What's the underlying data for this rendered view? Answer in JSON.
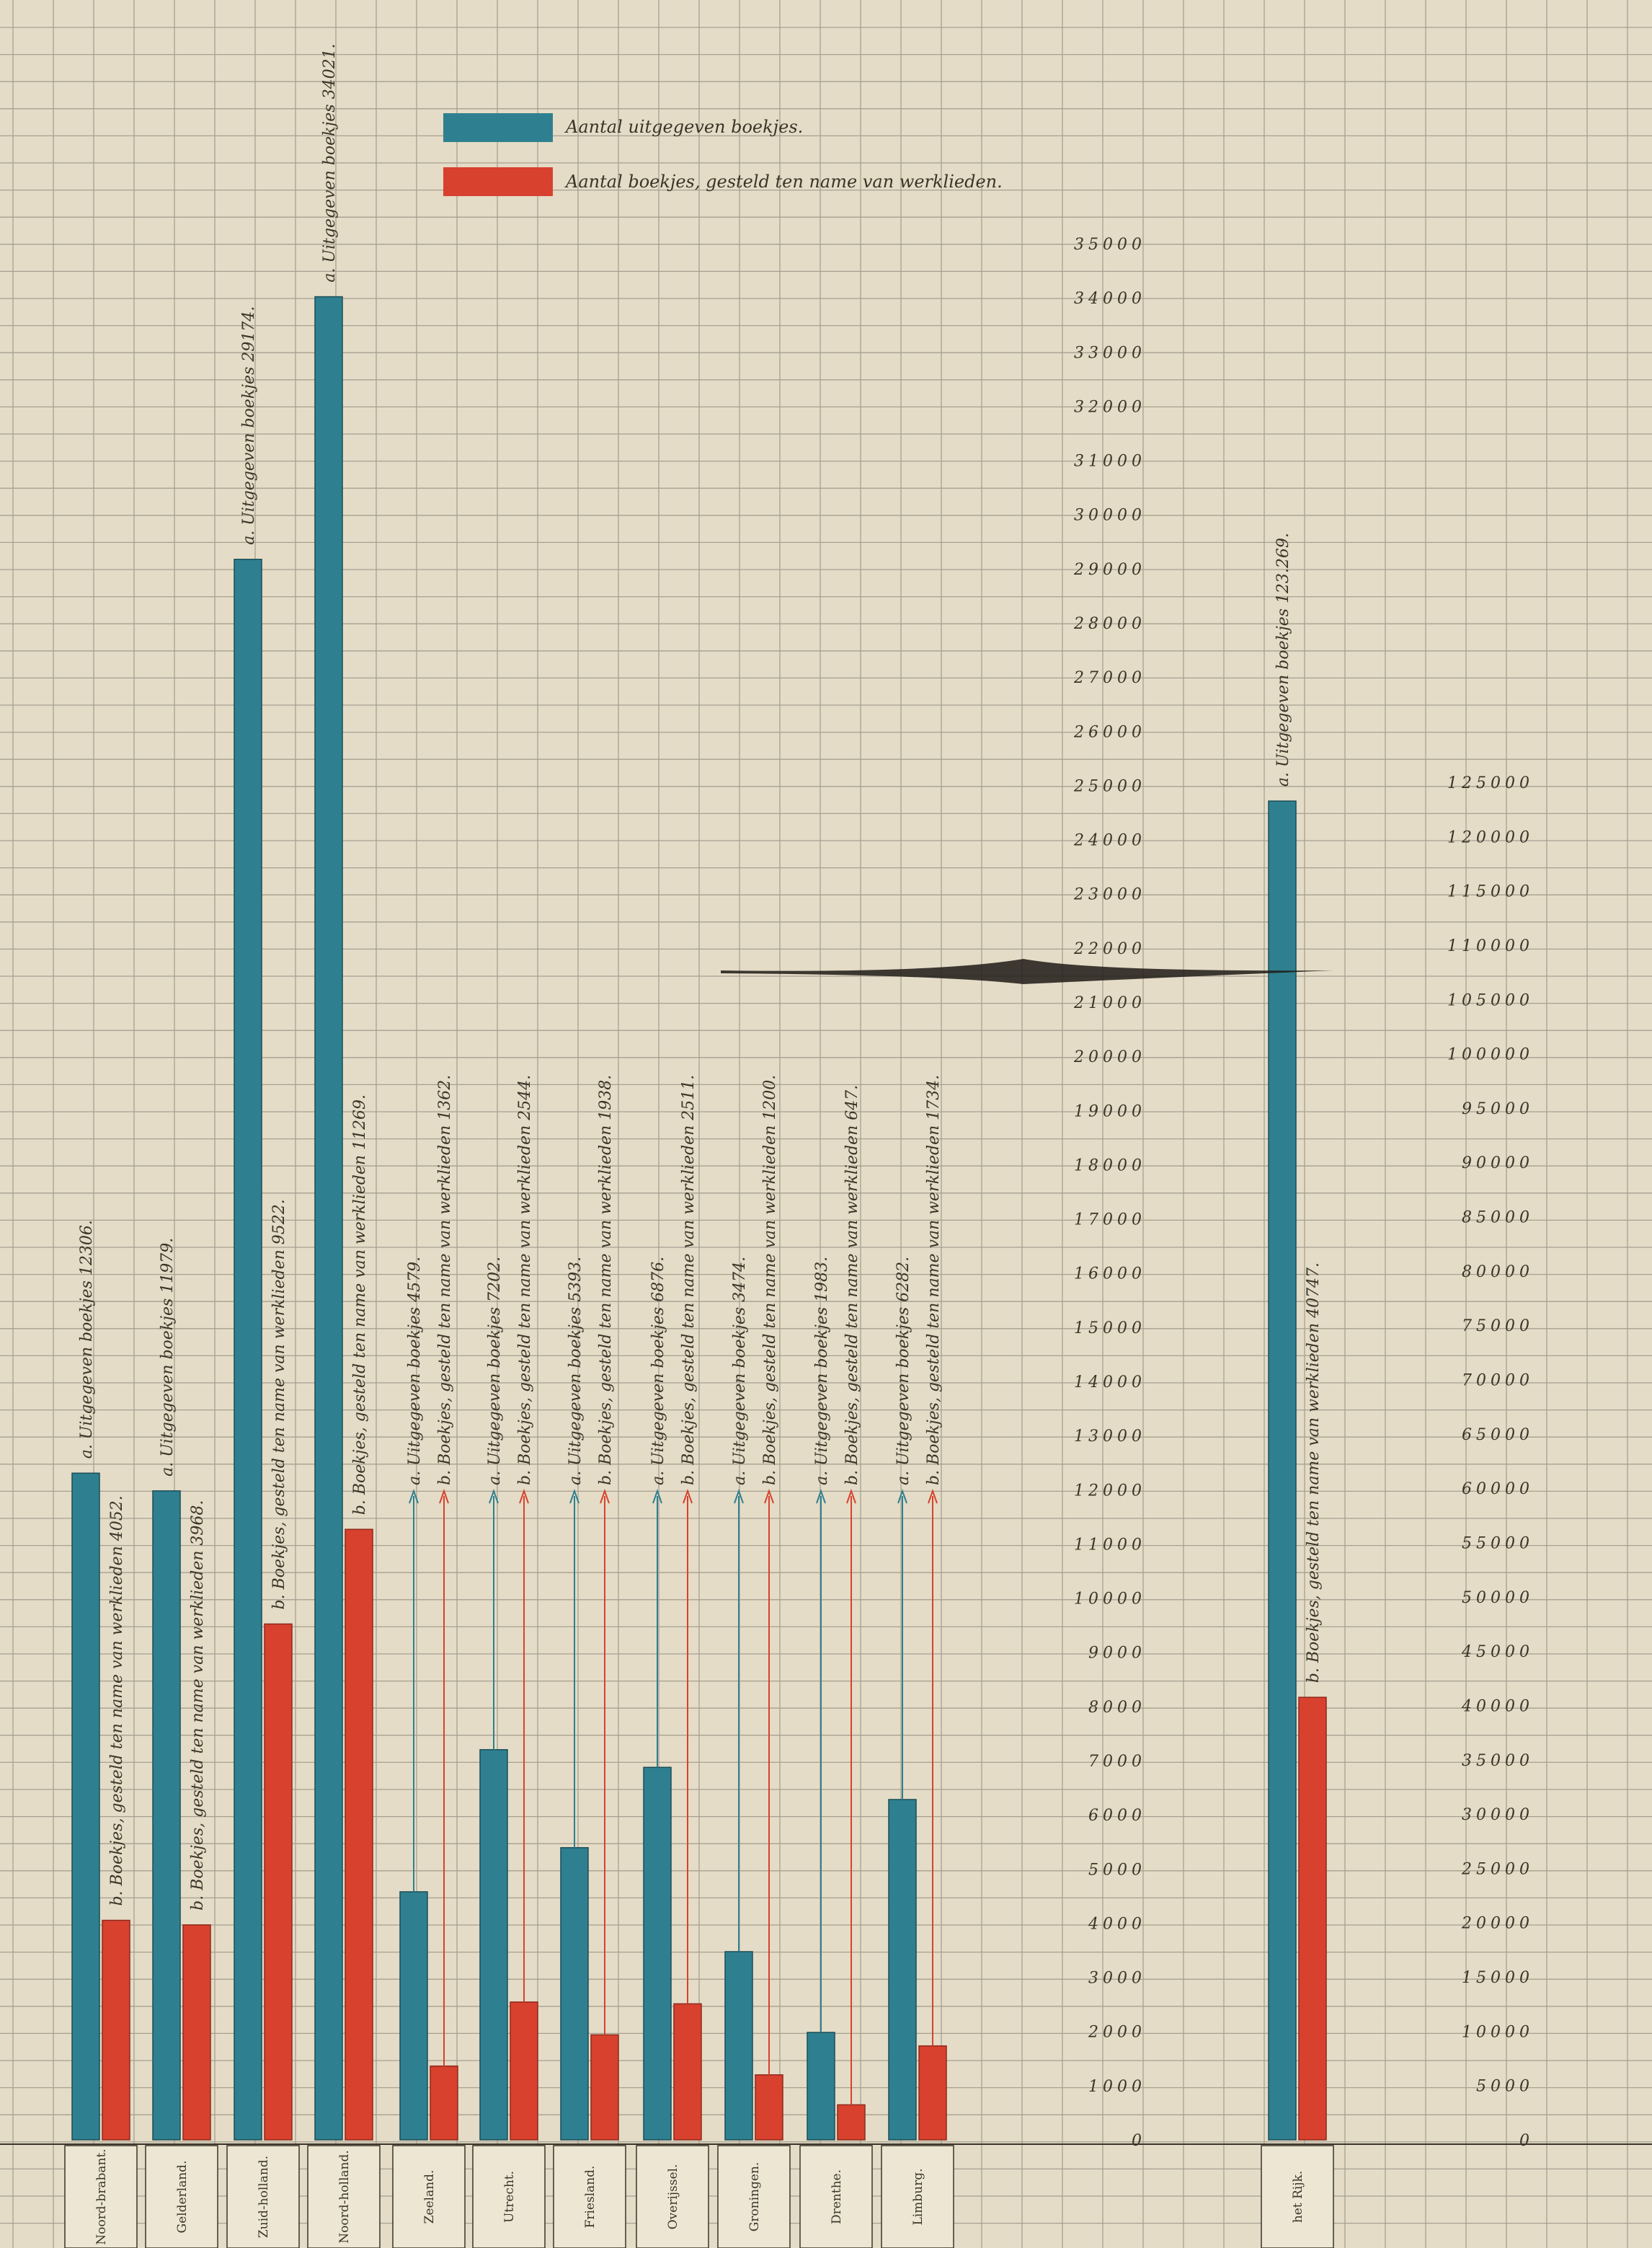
{
  "colors": {
    "paper": "#e4dcc6",
    "grid": "#9d968a",
    "uitgegeven": "#2e8090",
    "werklieden": "#d8412e",
    "ink": "#3b3428"
  },
  "legend": {
    "uitgegeven": "Aantal uitgegeven boekjes.",
    "werklieden": "Aantal boekjes, gesteld ten name van werklieden."
  },
  "chart_data": [
    {
      "type": "bar",
      "categories": [
        "Noord-brabant.",
        "Gelderland.",
        "Zuid-holland.",
        "Noord-holland.",
        "Zeeland.",
        "Utrecht.",
        "Friesland.",
        "Overijssel.",
        "Groningen.",
        "Drenthe.",
        "Limburg."
      ],
      "series": [
        {
          "name": "Aantal uitgegeven boekjes.",
          "values": [
            12306,
            11979,
            29174,
            34021,
            4579,
            7202,
            5393,
            6876,
            3474,
            1983,
            6282
          ]
        },
        {
          "name": "Aantal boekjes, gesteld ten name van werklieden.",
          "values": [
            4052,
            3968,
            9522,
            11269,
            1362,
            2544,
            1938,
            2511,
            1200,
            647,
            1734
          ]
        }
      ],
      "bar_labels": [
        {
          "a": "a.  Uitgegeven boekjes   12306.",
          "b": "b.  Boekjes, gesteld ten name van werklieden   4052."
        },
        {
          "a": "a.  Uitgegeven boekjes   11979.",
          "b": "b.  Boekjes, gesteld ten name van werklieden   3968."
        },
        {
          "a": "a.  Uitgegeven boekjes   29174.",
          "b": "b.  Boekjes, gesteld ten name van werklieden   9522."
        },
        {
          "a": "a.  Uitgegeven boekjes   34021.",
          "b": "b.  Boekjes, gesteld ten name van werklieden   11269."
        },
        {
          "a": "a.  Uitgegeven boekjes   4579.",
          "b": "b.  Boekjes, gesteld ten name van werklieden   1362."
        },
        {
          "a": "a.  Uitgegeven boekjes   7202.",
          "b": "b.  Boekjes, gesteld ten name van werklieden   2544."
        },
        {
          "a": "a.  Uitgegeven boekjes   5393.",
          "b": "b.  Boekjes, gesteld ten name van werklieden   1938."
        },
        {
          "a": "a.  Uitgegeven boekjes   6876.",
          "b": "b.  Boekjes, gesteld ten name van werklieden   2511."
        },
        {
          "a": "a.  Uitgegeven boekjes   3474.",
          "b": "b.  Boekjes, gesteld ten name van werklieden   1200."
        },
        {
          "a": "a.  Uitgegeven boekjes   1983.",
          "b": "b.  Boekjes, gesteld ten name van werklieden   647."
        },
        {
          "a": "a.  Uitgegeven boekjes   6282.",
          "b": "b.  Boekjes, gesteld ten name van werklieden   1734."
        }
      ],
      "ylim": [
        0,
        35000
      ],
      "yticks": [
        "0",
        "1000",
        "2000",
        "3000",
        "4000",
        "5000",
        "6000",
        "7000",
        "8000",
        "9000",
        "10000",
        "11000",
        "12000",
        "13000",
        "14000",
        "15000",
        "16000",
        "17000",
        "18000",
        "19000",
        "20000",
        "21000",
        "22000",
        "23000",
        "24000",
        "25000",
        "26000",
        "27000",
        "28000",
        "29000",
        "30000",
        "31000",
        "32000",
        "33000",
        "34000",
        "35000"
      ],
      "grid": true,
      "legend": "top"
    },
    {
      "type": "bar",
      "categories": [
        "het Rijk."
      ],
      "series": [
        {
          "name": "Aantal uitgegeven boekjes.",
          "values": [
            123269
          ]
        },
        {
          "name": "Aantal boekjes, gesteld ten name van werklieden.",
          "values": [
            40747
          ]
        }
      ],
      "bar_labels": [
        {
          "a": "a.  Uitgegeven boekjes   123.269.",
          "b": "b.  Boekjes, gesteld ten name van werklieden   40747."
        }
      ],
      "ylim": [
        0,
        125000
      ],
      "yticks": [
        "0",
        "5000",
        "10000",
        "15000",
        "20000",
        "25000",
        "30000",
        "35000",
        "40000",
        "45000",
        "50000",
        "55000",
        "60000",
        "65000",
        "70000",
        "75000",
        "80000",
        "85000",
        "90000",
        "95000",
        "100000",
        "105000",
        "110000",
        "115000",
        "120000",
        "125000"
      ],
      "grid": true
    }
  ]
}
